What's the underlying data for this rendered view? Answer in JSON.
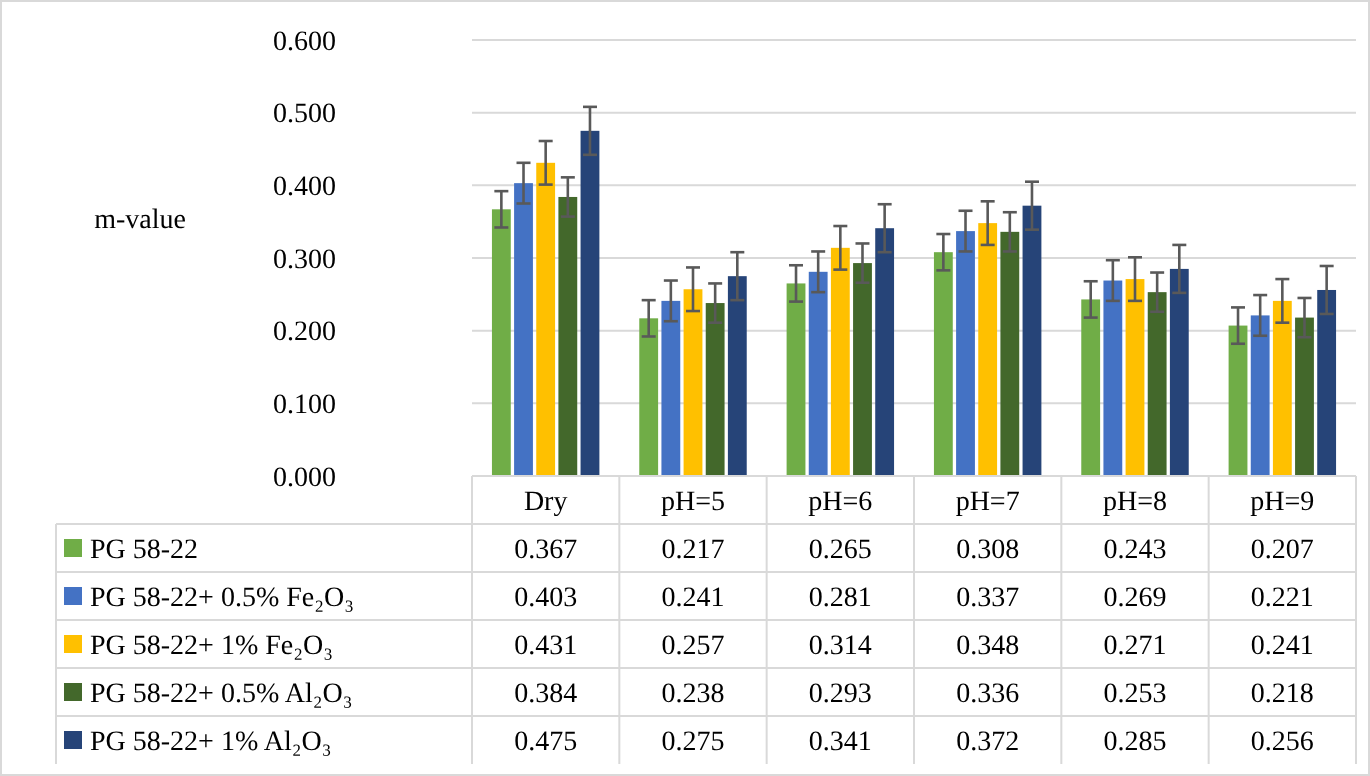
{
  "chart_data": {
    "type": "bar",
    "ylabel": "m-value",
    "categories": [
      "Dry",
      "pH=5",
      "pH=6",
      "pH=7",
      "pH=8",
      "pH=9"
    ],
    "series": [
      {
        "name": "PG 58-22",
        "color": "#70ad47",
        "values": [
          0.367,
          0.217,
          0.265,
          0.308,
          0.243,
          0.207
        ],
        "errors": [
          0.025,
          0.025,
          0.025,
          0.025,
          0.025,
          0.025
        ]
      },
      {
        "name": "PG 58-22+ 0.5% Fe₂O₃",
        "color": "#4472c4",
        "values": [
          0.403,
          0.241,
          0.281,
          0.337,
          0.269,
          0.221
        ],
        "errors": [
          0.028,
          0.028,
          0.028,
          0.028,
          0.028,
          0.028
        ]
      },
      {
        "name": "PG 58-22+ 1% Fe₂O₃",
        "color": "#ffc000",
        "values": [
          0.431,
          0.257,
          0.314,
          0.348,
          0.271,
          0.241
        ],
        "errors": [
          0.03,
          0.03,
          0.03,
          0.03,
          0.03,
          0.03
        ]
      },
      {
        "name": "PG 58-22+ 0.5% Al₂O₃",
        "color": "#43682b",
        "values": [
          0.384,
          0.238,
          0.293,
          0.336,
          0.253,
          0.218
        ],
        "errors": [
          0.027,
          0.027,
          0.027,
          0.027,
          0.027,
          0.027
        ]
      },
      {
        "name": "PG 58-22+ 1% Al₂O₃",
        "color": "#264478",
        "values": [
          0.475,
          0.275,
          0.341,
          0.372,
          0.285,
          0.256
        ],
        "errors": [
          0.033,
          0.033,
          0.033,
          0.033,
          0.033,
          0.033
        ]
      }
    ],
    "ylim": [
      0,
      0.6
    ],
    "yticks": [
      {
        "value": 0,
        "label": "0.000"
      },
      {
        "value": 0.1,
        "label": "0.100"
      },
      {
        "value": 0.2,
        "label": "0.200"
      },
      {
        "value": 0.3,
        "label": "0.300"
      },
      {
        "value": 0.4,
        "label": "0.400"
      },
      {
        "value": 0.5,
        "label": "0.500"
      },
      {
        "value": 0.6,
        "label": "0.600"
      }
    ],
    "grid": "y",
    "legend": "bottom",
    "data_labels": true
  }
}
